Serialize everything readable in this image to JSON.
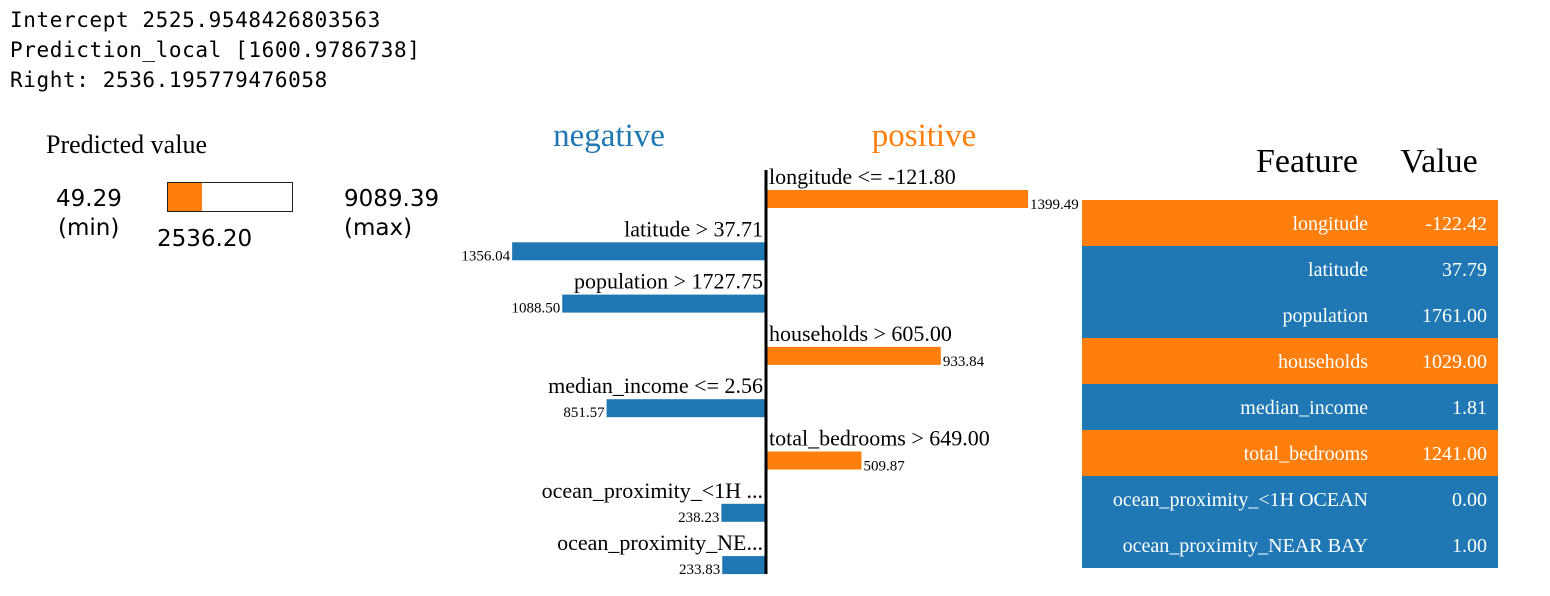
{
  "header": {
    "intercept": "Intercept 2525.9548426803563",
    "prediction_local": "Prediction_local [1600.9786738]",
    "right": "Right: 2536.195779476058"
  },
  "predicted": {
    "title": "Predicted value",
    "min": "49.29",
    "min_label": "(min)",
    "max": "9089.39",
    "max_label": "(max)",
    "value": "2536.20",
    "min_num": 49.29,
    "max_num": 9089.39,
    "value_num": 2536.2
  },
  "colors": {
    "negative": "#1f77b4",
    "positive": "#ff7f0e"
  },
  "chart_data": {
    "type": "bar",
    "negative_label": "negative",
    "positive_label": "positive",
    "bars": [
      {
        "label": "longitude <= -121.80",
        "value": 1399.49,
        "value_label": "1399.49",
        "sign": "positive"
      },
      {
        "label": "latitude > 37.71",
        "value": 1356.04,
        "value_label": "1356.04",
        "sign": "negative"
      },
      {
        "label": "population > 1727.75",
        "value": 1088.5,
        "value_label": "1088.50",
        "sign": "negative"
      },
      {
        "label": "households > 605.00",
        "value": 933.84,
        "value_label": "933.84",
        "sign": "positive"
      },
      {
        "label": "median_income <= 2.56",
        "value": 851.57,
        "value_label": "851.57",
        "sign": "negative"
      },
      {
        "label": "total_bedrooms > 649.00",
        "value": 509.87,
        "value_label": "509.87",
        "sign": "positive"
      },
      {
        "label": "ocean_proximity_<1H ...",
        "value": 238.23,
        "value_label": "238.23",
        "sign": "negative"
      },
      {
        "label": "ocean_proximity_NE...",
        "value": 233.83,
        "value_label": "233.83",
        "sign": "negative"
      }
    ]
  },
  "table": {
    "header_feature": "Feature",
    "header_value": "Value",
    "rows": [
      {
        "feature": "longitude",
        "value": "-122.42",
        "sign": "positive"
      },
      {
        "feature": "latitude",
        "value": "37.79",
        "sign": "negative"
      },
      {
        "feature": "population",
        "value": "1761.00",
        "sign": "negative"
      },
      {
        "feature": "households",
        "value": "1029.00",
        "sign": "positive"
      },
      {
        "feature": "median_income",
        "value": "1.81",
        "sign": "negative"
      },
      {
        "feature": "total_bedrooms",
        "value": "1241.00",
        "sign": "positive"
      },
      {
        "feature": "ocean_proximity_<1H OCEAN",
        "value": "0.00",
        "sign": "negative"
      },
      {
        "feature": "ocean_proximity_NEAR BAY",
        "value": "1.00",
        "sign": "negative"
      }
    ]
  }
}
